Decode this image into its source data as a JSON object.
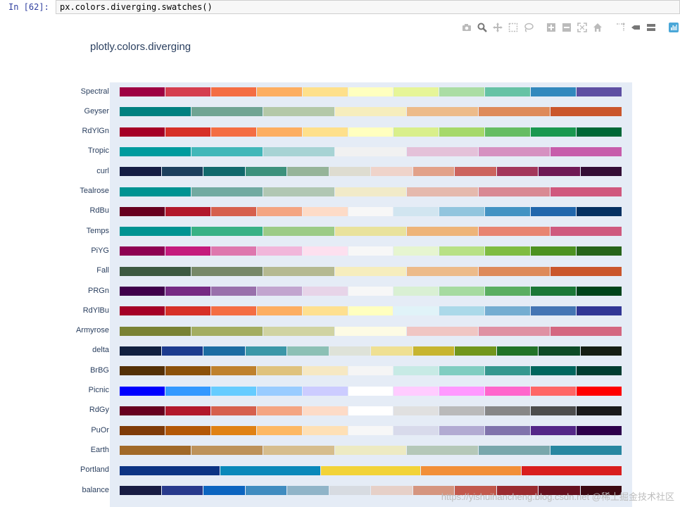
{
  "cell": {
    "prompt": "In  [62]:",
    "code": "px.colors.diverging.swatches()"
  },
  "modebar": {
    "buttons": [
      "camera-icon",
      "zoom-icon",
      "pan-icon",
      "box-select-icon",
      "lasso-icon",
      "zoom-in-icon",
      "zoom-out-icon",
      "autoscale-icon",
      "home-icon",
      "spike-lines-icon",
      "hover-closest-icon",
      "hover-compare-icon",
      "plotly-logo-icon"
    ]
  },
  "chart_data": {
    "type": "heatmap",
    "title": "plotly.colors.diverging",
    "rows": [
      {
        "name": "Spectral",
        "colors": [
          "#9e0142",
          "#d53e4f",
          "#f46d43",
          "#fdae61",
          "#fee08b",
          "#ffffbf",
          "#e6f598",
          "#abdda4",
          "#66c2a5",
          "#3288bd",
          "#5e4fa2"
        ]
      },
      {
        "name": "Geyser",
        "colors": [
          "#008080",
          "#70a494",
          "#b4c8a8",
          "#f6edbd",
          "#edbb8a",
          "#de8a5a",
          "#ca562c"
        ]
      },
      {
        "name": "RdYlGn",
        "colors": [
          "#a50026",
          "#d73027",
          "#f46d43",
          "#fdae61",
          "#fee08b",
          "#ffffbf",
          "#d9ef8b",
          "#a6d96a",
          "#66bd63",
          "#1a9850",
          "#006837"
        ]
      },
      {
        "name": "Tropic",
        "colors": [
          "#009B9E",
          "#42B7B9",
          "#A7D3D4",
          "#F1F1F1",
          "#E4C1D9",
          "#D691C1",
          "#C75DAB"
        ]
      },
      {
        "name": "curl",
        "colors": [
          "#151d44",
          "#1c3f5d",
          "#11696c",
          "#3d917c",
          "#96b499",
          "#dedcd0",
          "#efd3ca",
          "#e2a189",
          "#cc645e",
          "#a3375b",
          "#6f1955",
          "#340d35"
        ]
      },
      {
        "name": "Tealrose",
        "colors": [
          "#009392",
          "#72aaa1",
          "#b1c7b3",
          "#f1eac8",
          "#e5b9ad",
          "#d98994",
          "#d0587e"
        ]
      },
      {
        "name": "RdBu",
        "colors": [
          "#67001f",
          "#b2182b",
          "#d6604d",
          "#f4a582",
          "#fddbc7",
          "#f7f7f7",
          "#d1e5f0",
          "#92c5de",
          "#4393c3",
          "#2166ac",
          "#053061"
        ]
      },
      {
        "name": "Temps",
        "colors": [
          "#009392",
          "#39b185",
          "#9ccb86",
          "#e9e29c",
          "#eeb479",
          "#e88471",
          "#cf597e"
        ]
      },
      {
        "name": "PiYG",
        "colors": [
          "#8e0152",
          "#c51b7d",
          "#de77ae",
          "#f1b6da",
          "#fde0ef",
          "#f7f7f7",
          "#e6f5d0",
          "#b8e186",
          "#7fbc41",
          "#4d9221",
          "#276419"
        ]
      },
      {
        "name": "Fall",
        "colors": [
          "#3d5941",
          "#778868",
          "#b5b991",
          "#f6edbd",
          "#edbb8a",
          "#de8a5a",
          "#ca562c"
        ]
      },
      {
        "name": "PRGn",
        "colors": [
          "#40004b",
          "#762a83",
          "#9970ab",
          "#c2a5cf",
          "#e7d4e8",
          "#f7f7f7",
          "#d9f0d3",
          "#a6dba0",
          "#5aae61",
          "#1b7837",
          "#00441b"
        ]
      },
      {
        "name": "RdYlBu",
        "colors": [
          "#a50026",
          "#d73027",
          "#f46d43",
          "#fdae61",
          "#fee090",
          "#ffffbf",
          "#e0f3f8",
          "#abd9e9",
          "#74add1",
          "#4575b4",
          "#313695"
        ]
      },
      {
        "name": "Armyrose",
        "colors": [
          "#798234",
          "#a3ad62",
          "#d0d3a2",
          "#fdfbe4",
          "#f0c6c3",
          "#df91a3",
          "#d46780"
        ]
      },
      {
        "name": "delta",
        "colors": [
          "#112040",
          "#1c3b8e",
          "#1c6ca2",
          "#3b97a8",
          "#8cc0b5",
          "#dee2d8",
          "#efe093",
          "#c7b530",
          "#72961c",
          "#217327",
          "#0e4a26",
          "#161e13"
        ]
      },
      {
        "name": "BrBG",
        "colors": [
          "#543005",
          "#8c510a",
          "#bf812d",
          "#dfc27d",
          "#f6e8c3",
          "#f5f5f5",
          "#c7eae5",
          "#80cdc1",
          "#35978f",
          "#01665e",
          "#003c30"
        ]
      },
      {
        "name": "Picnic",
        "colors": [
          "#0000ff",
          "#3399ff",
          "#66ccff",
          "#99ccff",
          "#ccccff",
          "#ffffff",
          "#ffccff",
          "#ff99ff",
          "#ff66cc",
          "#ff6666",
          "#ff0000"
        ]
      },
      {
        "name": "RdGy",
        "colors": [
          "#67001f",
          "#b2182b",
          "#d6604d",
          "#f4a582",
          "#fddbc7",
          "#ffffff",
          "#e0e0e0",
          "#bababa",
          "#878787",
          "#4d4d4d",
          "#1a1a1a"
        ]
      },
      {
        "name": "PuOr",
        "colors": [
          "#7f3b08",
          "#b35806",
          "#e08214",
          "#fdb863",
          "#fee0b6",
          "#f7f7f7",
          "#d8daeb",
          "#b2abd2",
          "#8073ac",
          "#542788",
          "#2d004b"
        ]
      },
      {
        "name": "Earth",
        "colors": [
          "#A16928",
          "#bd925a",
          "#d6bd8d",
          "#edeac2",
          "#b5c8b8",
          "#79a7ac",
          "#2887a1"
        ]
      },
      {
        "name": "Portland",
        "colors": [
          "#0c3383",
          "#0a88ba",
          "#f2d338",
          "#f28f38",
          "#d91e1e"
        ]
      },
      {
        "name": "balance",
        "colors": [
          "#181c43",
          "#283a8c",
          "#0c65c0",
          "#408cc0",
          "#90b4c8",
          "#d7dbe1",
          "#e6d0c8",
          "#d5957f",
          "#c2594c",
          "#9b2b2f",
          "#66101f",
          "#3c0912"
        ]
      }
    ]
  },
  "watermark": "https://yishuihancheng.blog.csdn.net @稀土掘金技术社区"
}
